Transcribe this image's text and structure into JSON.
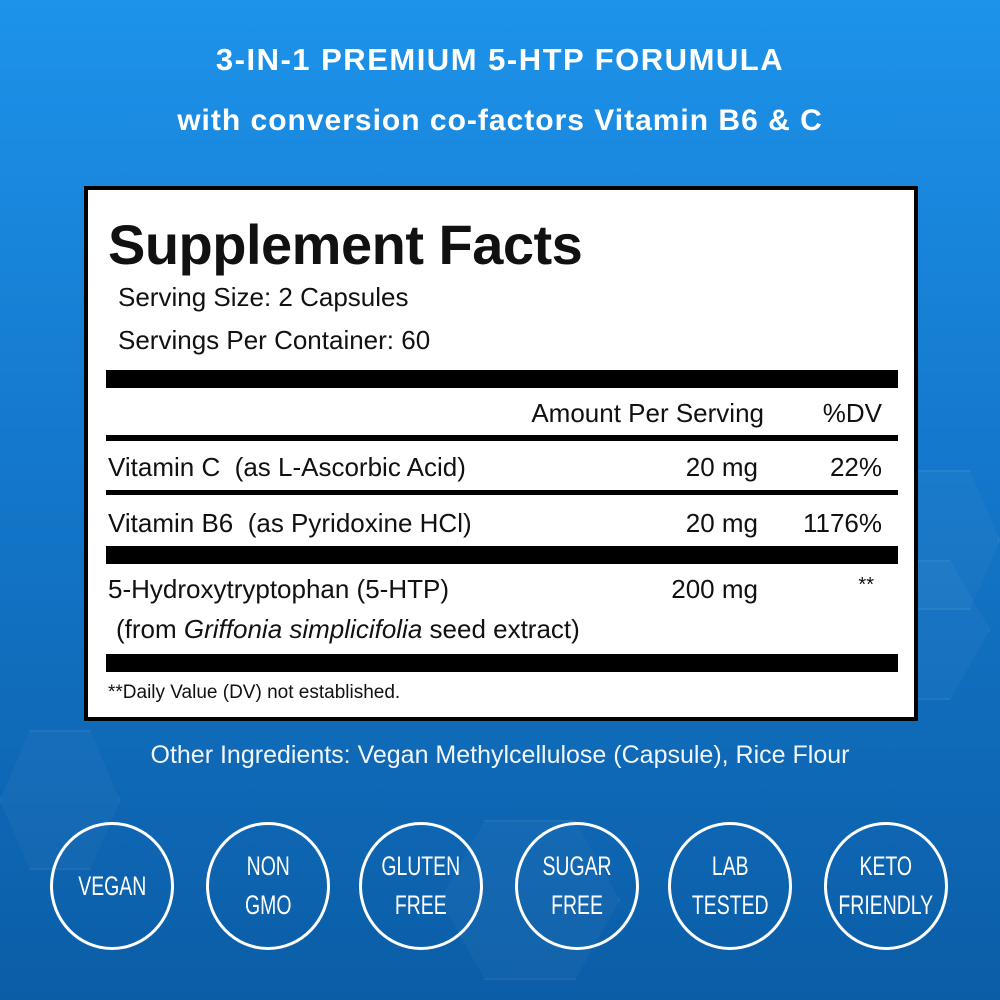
{
  "header": {
    "title": "3-IN-1 PREMIUM 5-HTP FORUMULA",
    "subtitle": "with conversion co-factors Vitamin B6 & C"
  },
  "facts": {
    "title": "Supplement Facts",
    "serving_size": "Serving Size: 2 Capsules",
    "servings_per_container": "Servings Per Container: 60",
    "col_amount": "Amount Per Serving",
    "col_dv": "%DV",
    "rows": [
      {
        "name": "Vitamin C  (as L-Ascorbic Acid)",
        "amount": "20 mg",
        "dv": "22%"
      },
      {
        "name": "Vitamin B6  (as Pyridoxine HCl)",
        "amount": "20 mg",
        "dv": "1176%"
      },
      {
        "name": "5-Hydroxytryptophan (5-HTP)",
        "sub_pre": "(from ",
        "sub_italic": "Griffonia simplicifolia",
        "sub_post": " seed extract)",
        "amount": "200 mg",
        "dv": "**"
      }
    ],
    "footnote": "**Daily Value (DV) not established."
  },
  "other_ingredients": "Other Ingredients: Vegan Methylcellulose (Capsule), Rice Flour",
  "badges": [
    [
      "VEGAN"
    ],
    [
      "NON",
      "GMO"
    ],
    [
      "GLUTEN",
      "FREE"
    ],
    [
      "SUGAR",
      "FREE"
    ],
    [
      "LAB",
      "TESTED"
    ],
    [
      "KETO",
      "FRIENDLY"
    ]
  ],
  "colors": {
    "background_top": "#1d93ea",
    "background_bottom": "#0b5da6",
    "label": "#ffffff",
    "text": "#111111"
  }
}
